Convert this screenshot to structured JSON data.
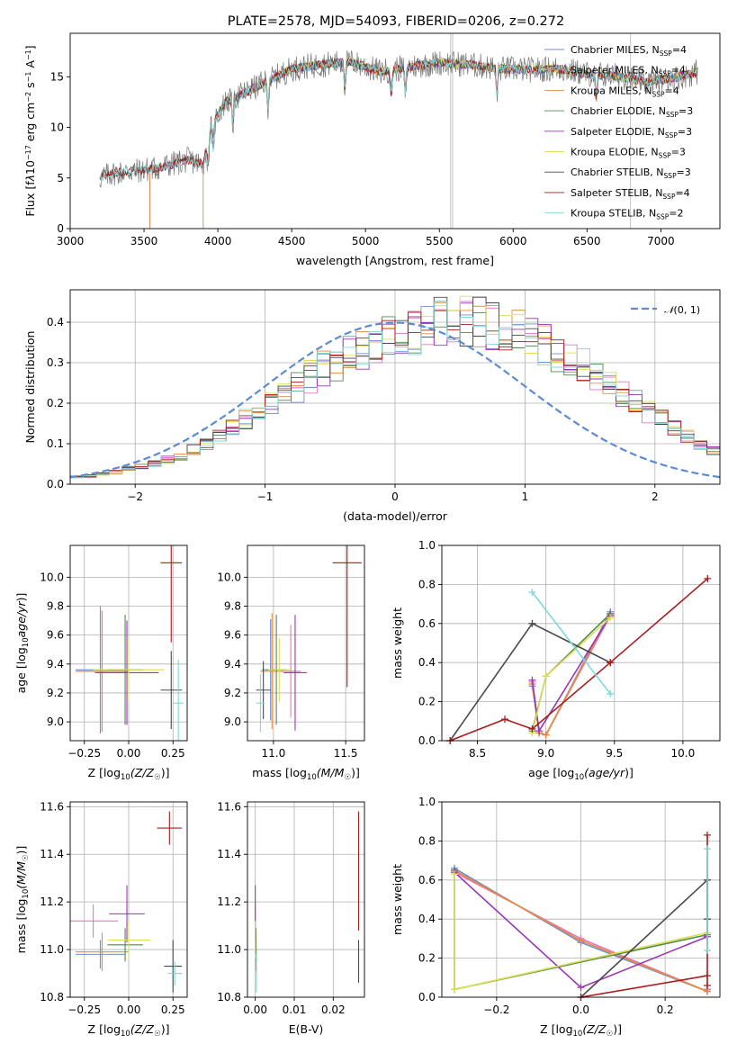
{
  "figure_title": "PLATE=2578, MJD=54093, FIBERID=0206, z=0.272",
  "colors": {
    "Chabrier MILES": "#6a8fd8",
    "Salpeter MILES": "#e377c2",
    "Kroupa MILES": "#e88a3c",
    "Chabrier ELODIE": "#4e8a4e",
    "Salpeter ELODIE": "#9a35b5",
    "Kroupa ELODIE": "#dede55",
    "Chabrier STELIB": "#4a4a4a",
    "Salpeter STELIB": "#a71d1d",
    "Kroupa STELIB": "#7fd8d8",
    "normal": "#5b8bd5"
  },
  "chart_data": [
    {
      "id": "spectrum",
      "type": "line",
      "title": "PLATE=2578, MJD=54093, FIBERID=0206, z=0.272",
      "xlabel": "wavelength [Angstrom, rest frame]",
      "ylabel_html": "Flux [f<tspan font-style='italic'>λ</tspan>10<tspan baseline-shift='super' font-size='8'>−17</tspan> erg cm<tspan baseline-shift='super' font-size='8'>−2</tspan> s<tspan baseline-shift='super' font-size='8'>−1</tspan> A<tspan baseline-shift='super' font-size='8'>−1</tspan>]",
      "xlim": [
        3000,
        7400
      ],
      "ylim": [
        0,
        19.3
      ],
      "xticks": [
        "3000",
        "3500",
        "4000",
        "4500",
        "5000",
        "5500",
        "6000",
        "6500",
        "7000"
      ],
      "xtick_values": [
        3000,
        3500,
        4000,
        4500,
        5000,
        5500,
        6000,
        6500,
        7000
      ],
      "yticks": [
        "0",
        "5",
        "10",
        "15"
      ],
      "ytick_values": [
        0,
        5,
        10,
        15
      ],
      "grid": false,
      "legend_position": "upper right",
      "observed_continuum": {
        "x": [
          3200,
          3300,
          3450,
          3600,
          3800,
          3900,
          3950,
          4050,
          4150,
          4300,
          4500,
          4700,
          4900,
          5100,
          5300,
          5500,
          5700,
          5900,
          6100,
          6300,
          6500,
          6700,
          6900,
          7100,
          7250
        ],
        "y": [
          5.0,
          5.5,
          5.7,
          6.0,
          6.8,
          6.3,
          10.0,
          12.5,
          13.2,
          14.3,
          15.8,
          16.2,
          16.5,
          15.5,
          16.0,
          16.4,
          16.2,
          15.8,
          15.7,
          15.8,
          15.3,
          15.1,
          14.5,
          14.9,
          15.5
        ]
      },
      "series": [
        {
          "name": "Chabrier MILES, N_SSP=4",
          "legend_main": "Chabrier MILES, N",
          "legend_sub": "SSP",
          "legend_tail": "=4",
          "color_key": "Chabrier MILES",
          "start": 3540
        },
        {
          "name": "Salpeter MILES, N_SSP=4",
          "legend_main": "Salpeter MILES, N",
          "legend_sub": "SSP",
          "legend_tail": "=4",
          "color_key": "Salpeter MILES",
          "start": 3540
        },
        {
          "name": "Kroupa MILES, N_SSP=4",
          "legend_main": "Kroupa MILES, N",
          "legend_sub": "SSP",
          "legend_tail": "=4",
          "color_key": "Kroupa MILES",
          "start": 3540
        },
        {
          "name": "Chabrier ELODIE, N_SSP=3",
          "legend_main": "Chabrier ELODIE, N",
          "legend_sub": "SSP",
          "legend_tail": "=3",
          "color_key": "Chabrier ELODIE",
          "start": 3900
        },
        {
          "name": "Salpeter ELODIE, N_SSP=3",
          "legend_main": "Salpeter ELODIE, N",
          "legend_sub": "SSP",
          "legend_tail": "=3",
          "color_key": "Salpeter ELODIE",
          "start": 3900
        },
        {
          "name": "Kroupa ELODIE, N_SSP=3",
          "legend_main": "Kroupa ELODIE, N",
          "legend_sub": "SSP",
          "legend_tail": "=3",
          "color_key": "Kroupa ELODIE",
          "start": 3900
        },
        {
          "name": "Chabrier STELIB, N_SSP=3",
          "legend_main": "Chabrier STELIB, N",
          "legend_sub": "SSP",
          "legend_tail": "=3",
          "color_key": "Chabrier STELIB",
          "start": 3200
        },
        {
          "name": "Salpeter STELIB, N_SSP=4",
          "legend_main": "Salpeter STELIB, N",
          "legend_sub": "SSP",
          "legend_tail": "=4",
          "color_key": "Salpeter STELIB",
          "start": 3200
        },
        {
          "name": "Kroupa STELIB, N_SSP=2",
          "legend_main": "Kroupa STELIB, N",
          "legend_sub": "SSP",
          "legend_tail": "=2",
          "color_key": "Kroupa STELIB",
          "start": 3200
        }
      ]
    },
    {
      "id": "residuals",
      "type": "histogram",
      "xlabel": "(data-model)/error",
      "ylabel": "Normed distribution",
      "xlim": [
        -2.5,
        2.5
      ],
      "ylim": [
        0,
        0.48
      ],
      "xticks": [
        "−2",
        "−1",
        "0",
        "1",
        "2"
      ],
      "xtick_values": [
        -2,
        -1,
        0,
        1,
        2
      ],
      "yticks": [
        "0.0",
        "0.1",
        "0.2",
        "0.3",
        "0.4"
      ],
      "ytick_values": [
        0,
        0.1,
        0.2,
        0.3,
        0.4
      ],
      "grid": true,
      "bin_width": 0.1,
      "bins_start": -2.5,
      "histogram_envelope": [
        0.018,
        0.02,
        0.025,
        0.03,
        0.038,
        0.045,
        0.052,
        0.06,
        0.07,
        0.085,
        0.1,
        0.12,
        0.14,
        0.16,
        0.18,
        0.2,
        0.22,
        0.24,
        0.265,
        0.285,
        0.3,
        0.315,
        0.33,
        0.345,
        0.36,
        0.37,
        0.38,
        0.39,
        0.4,
        0.405,
        0.405,
        0.4,
        0.395,
        0.385,
        0.375,
        0.36,
        0.345,
        0.33,
        0.31,
        0.29,
        0.27,
        0.25,
        0.225,
        0.2,
        0.18,
        0.16,
        0.14,
        0.12,
        0.1,
        0.085
      ],
      "normal_curve": {
        "label": "N(0,1)",
        "mean": 0,
        "sigma": 1
      },
      "legend_position": "upper right"
    },
    {
      "id": "age_vs_Z",
      "type": "errorbar",
      "xlabel_main": "Z [log",
      "xlabel_sub": "10",
      "xlabel_tail": "(Z/Z",
      "xlabel_end": ")]",
      "ylabel": "age  [log10(age/yr)]",
      "xlim": [
        -0.33,
        0.33
      ],
      "ylim": [
        8.87,
        10.22
      ],
      "xticks": [
        "−0.25",
        "0.00",
        "0.25"
      ],
      "xtick_values": [
        -0.25,
        0,
        0.25
      ],
      "yticks": [
        "9.0",
        "9.2",
        "9.4",
        "9.6",
        "9.8",
        "10.0"
      ],
      "ytick_values": [
        9.0,
        9.2,
        9.4,
        9.6,
        9.8,
        10.0
      ],
      "grid": true,
      "points": [
        {
          "c": "Chabrier MILES",
          "x": -0.16,
          "xerr": 0.14,
          "y": 9.36,
          "yerr": 0.44
        },
        {
          "c": "Salpeter MILES",
          "x": -0.15,
          "xerr": 0.14,
          "y": 9.35,
          "yerr": 0.4
        },
        {
          "c": "Kroupa MILES",
          "x": -0.15,
          "xerr": 0.15,
          "y": 9.35,
          "yerr": 0.42
        },
        {
          "c": "Chabrier ELODIE",
          "x": -0.02,
          "xerr": 0.1,
          "y": 9.36,
          "yerr": 0.38
        },
        {
          "c": "Salpeter ELODIE",
          "x": -0.01,
          "xerr": 0.18,
          "y": 9.34,
          "yerr": 0.36
        },
        {
          "c": "Kroupa ELODIE",
          "x": 0.0,
          "xerr": 0.2,
          "y": 9.36,
          "yerr": 0.22
        },
        {
          "c": "Chabrier STELIB",
          "x": 0.24,
          "xerr": 0.06,
          "y": 9.22,
          "yerr": 0.27
        },
        {
          "c": "Salpeter STELIB",
          "x": 0.24,
          "xerr": 0.06,
          "y": 10.1,
          "yerr": 0.55
        },
        {
          "c": "Kroupa STELIB",
          "x": 0.28,
          "xerr": 0.03,
          "y": 9.13,
          "yerr": 0.3
        }
      ]
    },
    {
      "id": "age_vs_mass",
      "type": "errorbar",
      "xlabel": "mass [log10(M/M☉)]",
      "ylabel": "",
      "xlim": [
        10.82,
        11.63
      ],
      "ylim": [
        8.87,
        10.22
      ],
      "xticks": [
        "11.0",
        "11.5"
      ],
      "xtick_values": [
        11.0,
        11.5
      ],
      "yticks": [
        "9.0",
        "9.2",
        "9.4",
        "9.6",
        "9.8",
        "10.0"
      ],
      "ytick_values": [
        9.0,
        9.2,
        9.4,
        9.6,
        9.8,
        10.0
      ],
      "grid": true,
      "points": [
        {
          "c": "Chabrier MILES",
          "x": 10.98,
          "xerr": 0.06,
          "y": 9.36,
          "yerr": 0.35
        },
        {
          "c": "Salpeter MILES",
          "x": 11.12,
          "xerr": 0.07,
          "y": 9.35,
          "yerr": 0.32
        },
        {
          "c": "Kroupa MILES",
          "x": 10.99,
          "xerr": 0.08,
          "y": 9.35,
          "yerr": 0.4
        },
        {
          "c": "Chabrier ELODIE",
          "x": 11.02,
          "xerr": 0.07,
          "y": 9.36,
          "yerr": 0.38
        },
        {
          "c": "Salpeter ELODIE",
          "x": 11.15,
          "xerr": 0.08,
          "y": 9.34,
          "yerr": 0.4
        },
        {
          "c": "Kroupa ELODIE",
          "x": 11.04,
          "xerr": 0.08,
          "y": 9.36,
          "yerr": 0.22
        },
        {
          "c": "Chabrier STELIB",
          "x": 10.93,
          "xerr": 0.05,
          "y": 9.22,
          "yerr": 0.2
        },
        {
          "c": "Salpeter STELIB",
          "x": 11.51,
          "xerr": 0.1,
          "y": 10.1,
          "yerr": 0.86
        },
        {
          "c": "Kroupa STELIB",
          "x": 10.91,
          "xerr": 0.03,
          "y": 9.13,
          "yerr": 0.2
        }
      ]
    },
    {
      "id": "weight_vs_age",
      "type": "line",
      "xlabel": "age  [log10(age/yr)]",
      "ylabel": "mass weight",
      "xlim": [
        8.24,
        10.27
      ],
      "ylim": [
        0,
        1.0
      ],
      "xticks": [
        "8.5",
        "9.0",
        "9.5",
        "10.0"
      ],
      "xtick_values": [
        8.5,
        9.0,
        9.5,
        10.0
      ],
      "yticks": [
        "0.0",
        "0.2",
        "0.4",
        "0.6",
        "0.8",
        "1.0"
      ],
      "ytick_values": [
        0,
        0.2,
        0.4,
        0.6,
        0.8,
        1.0
      ],
      "grid": true,
      "series": [
        {
          "c": "Chabrier MILES",
          "x": [
            8.9,
            8.95,
            9.0,
            9.47
          ],
          "y": [
            0.28,
            0.04,
            0.03,
            0.66
          ]
        },
        {
          "c": "Salpeter MILES",
          "x": [
            8.9,
            8.95,
            9.0,
            9.47
          ],
          "y": [
            0.3,
            0.04,
            0.03,
            0.64
          ]
        },
        {
          "c": "Kroupa MILES",
          "x": [
            8.9,
            8.95,
            9.0,
            9.47
          ],
          "y": [
            0.29,
            0.04,
            0.03,
            0.65
          ]
        },
        {
          "c": "Chabrier ELODIE",
          "x": [
            8.9,
            9.0,
            9.47
          ],
          "y": [
            0.05,
            0.33,
            0.65
          ]
        },
        {
          "c": "Salpeter ELODIE",
          "x": [
            8.9,
            8.95,
            9.47
          ],
          "y": [
            0.31,
            0.05,
            0.64
          ]
        },
        {
          "c": "Kroupa ELODIE",
          "x": [
            8.9,
            9.0,
            9.47
          ],
          "y": [
            0.04,
            0.33,
            0.63
          ]
        },
        {
          "c": "Chabrier STELIB",
          "x": [
            8.3,
            8.9,
            9.47
          ],
          "y": [
            0.0,
            0.6,
            0.4
          ]
        },
        {
          "c": "Salpeter STELIB",
          "x": [
            8.3,
            8.7,
            8.9,
            9.47,
            10.18
          ],
          "y": [
            0.0,
            0.11,
            0.06,
            0.4,
            0.83
          ]
        },
        {
          "c": "Kroupa STELIB",
          "x": [
            8.9,
            9.47
          ],
          "y": [
            0.76,
            0.24
          ]
        }
      ]
    },
    {
      "id": "mass_vs_Z",
      "type": "errorbar",
      "xlabel_main": "Z [log",
      "xlabel_sub": "10",
      "xlabel_tail": "(Z/Z",
      "xlabel_end": ")]",
      "ylabel": "mass [log10(M/M☉)]",
      "xlim": [
        -0.33,
        0.33
      ],
      "ylim": [
        10.8,
        11.62
      ],
      "xticks": [
        "−0.25",
        "0.00",
        "0.25"
      ],
      "xtick_values": [
        -0.25,
        0,
        0.25
      ],
      "yticks": [
        "10.8",
        "11.0",
        "11.2",
        "11.4",
        "11.6"
      ],
      "ytick_values": [
        10.8,
        11.0,
        11.2,
        11.4,
        11.6
      ],
      "grid": true,
      "points": [
        {
          "c": "Chabrier MILES",
          "x": -0.16,
          "xerr": 0.14,
          "y": 10.98,
          "yerr": 0.06
        },
        {
          "c": "Salpeter MILES",
          "x": -0.2,
          "xerr": 0.14,
          "y": 11.12,
          "yerr": 0.07
        },
        {
          "c": "Kroupa MILES",
          "x": -0.15,
          "xerr": 0.15,
          "y": 10.99,
          "yerr": 0.08
        },
        {
          "c": "Chabrier ELODIE",
          "x": -0.02,
          "xerr": 0.1,
          "y": 11.02,
          "yerr": 0.07
        },
        {
          "c": "Salpeter ELODIE",
          "x": -0.01,
          "xerr": 0.1,
          "y": 11.15,
          "yerr": 0.12
        },
        {
          "c": "Kroupa ELODIE",
          "x": 0.0,
          "xerr": 0.12,
          "y": 11.04,
          "yerr": 0.08
        },
        {
          "c": "Chabrier STELIB",
          "x": 0.25,
          "xerr": 0.05,
          "y": 10.93,
          "yerr": 0.11
        },
        {
          "c": "Salpeter STELIB",
          "x": 0.23,
          "xerr": 0.07,
          "y": 11.51,
          "yerr": 0.07
        },
        {
          "c": "Kroupa STELIB",
          "x": 0.26,
          "xerr": 0.04,
          "y": 10.9,
          "yerr": 0.05
        }
      ]
    },
    {
      "id": "mass_vs_ebv",
      "type": "errorbar",
      "xlabel": "E(B-V)",
      "ylabel": "",
      "xlim": [
        -0.002,
        0.028
      ],
      "ylim": [
        10.8,
        11.62
      ],
      "xticks": [
        "0.00",
        "0.01",
        "0.02"
      ],
      "xtick_values": [
        0,
        0.01,
        0.02
      ],
      "yticks": [
        "10.8",
        "11.0",
        "11.2",
        "11.4",
        "11.6"
      ],
      "ytick_values": [
        10.8,
        11.0,
        11.2,
        11.4,
        11.6
      ],
      "grid": true,
      "points": [
        {
          "c": "Chabrier MILES",
          "x": 0.0002,
          "xerr": 0,
          "y": 10.98,
          "yerr": 0.06
        },
        {
          "c": "Salpeter MILES",
          "x": 0.0,
          "xerr": 0,
          "y": 11.12,
          "yerr": 0.07
        },
        {
          "c": "Kroupa MILES",
          "x": 0.0001,
          "xerr": 0,
          "y": 10.99,
          "yerr": 0.08
        },
        {
          "c": "Chabrier ELODIE",
          "x": 0.0002,
          "xerr": 0,
          "y": 11.02,
          "yerr": 0.07
        },
        {
          "c": "Salpeter ELODIE",
          "x": 0.0,
          "xerr": 0,
          "y": 11.15,
          "yerr": 0.12
        },
        {
          "c": "Kroupa ELODIE",
          "x": 0.0,
          "xerr": 0,
          "y": 11.04,
          "yerr": 0.08
        },
        {
          "c": "Chabrier STELIB",
          "x": 0.0265,
          "xerr": 0,
          "y": 10.95,
          "yerr": 0.09
        },
        {
          "c": "Salpeter STELIB",
          "x": 0.0265,
          "xerr": 0,
          "y": 11.33,
          "yerr": 0.25
        },
        {
          "c": "Kroupa STELIB",
          "x": 0.0003,
          "xerr": 0,
          "y": 10.9,
          "yerr": 0.08
        }
      ]
    },
    {
      "id": "weight_vs_Z",
      "type": "line",
      "xlabel_main": "Z [log",
      "xlabel_sub": "10",
      "xlabel_tail": "(Z/Z",
      "xlabel_end": ")]",
      "ylabel": "mass weight",
      "xlim": [
        -0.33,
        0.33
      ],
      "ylim": [
        0,
        1.0
      ],
      "xticks": [
        "−0.2",
        "0.0",
        "0.2"
      ],
      "xtick_values": [
        -0.2,
        0,
        0.2
      ],
      "yticks": [
        "0.0",
        "0.2",
        "0.4",
        "0.6",
        "0.8",
        "1.0"
      ],
      "ytick_values": [
        0,
        0.2,
        0.4,
        0.6,
        0.8,
        1.0
      ],
      "grid": true,
      "series": [
        {
          "c": "Chabrier MILES",
          "x": [
            -0.3,
            0.0,
            0.3,
            0.3
          ],
          "y": [
            0.66,
            0.28,
            0.03,
            0.04
          ]
        },
        {
          "c": "Salpeter MILES",
          "x": [
            -0.3,
            0.0,
            0.3,
            0.3
          ],
          "y": [
            0.64,
            0.3,
            0.03,
            0.04
          ]
        },
        {
          "c": "Kroupa MILES",
          "x": [
            -0.3,
            0.0,
            0.3,
            0.3
          ],
          "y": [
            0.65,
            0.29,
            0.03,
            0.04
          ]
        },
        {
          "c": "Chabrier ELODIE",
          "x": [
            -0.3,
            -0.3,
            0.3
          ],
          "y": [
            0.65,
            0.04,
            0.32
          ]
        },
        {
          "c": "Salpeter ELODIE",
          "x": [
            -0.3,
            0.0,
            0.3
          ],
          "y": [
            0.64,
            0.05,
            0.31
          ]
        },
        {
          "c": "Kroupa ELODIE",
          "x": [
            -0.3,
            -0.3,
            0.3
          ],
          "y": [
            0.63,
            0.04,
            0.33
          ]
        },
        {
          "c": "Chabrier STELIB",
          "x": [
            0.0,
            0.3,
            0.3
          ],
          "y": [
            0.0,
            0.6,
            0.4
          ]
        },
        {
          "c": "Salpeter STELIB",
          "x": [
            0.0,
            0.3,
            0.3,
            0.3
          ],
          "y": [
            0.0,
            0.11,
            0.06,
            0.83
          ]
        },
        {
          "c": "Kroupa STELIB",
          "x": [
            0.3,
            0.3
          ],
          "y": [
            0.76,
            0.24
          ]
        }
      ]
    }
  ]
}
